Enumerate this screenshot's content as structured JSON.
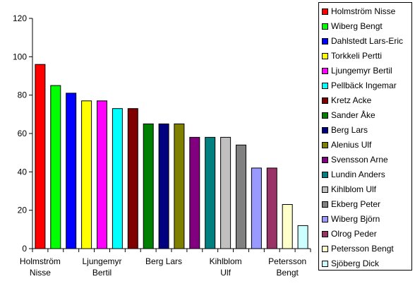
{
  "chart_data": {
    "type": "bar",
    "title": "",
    "xlabel": "",
    "ylabel": "",
    "ylim": [
      0,
      120
    ],
    "yticks": [
      0,
      20,
      40,
      60,
      80,
      100,
      120
    ],
    "grid": false,
    "legend_position": "right",
    "categories": [
      "Holmström Nisse",
      "Wiberg Bengt",
      "Dahlstedt Lars-Eric",
      "Torkkeli Pertti",
      "Ljungemyr Bertil",
      "Pellbäck Ingemar",
      "Kretz Acke",
      "Sander Åke",
      "Berg Lars",
      "Alenius Ulf",
      "Svensson Arne",
      "Lundin Anders",
      "Kihlblom  Ulf",
      "Ekberg Peter",
      "Wiberg Björn",
      "Olrog Peder",
      "Petersson Bengt",
      "Sjöberg Dick"
    ],
    "values": [
      96,
      85,
      81,
      77,
      77,
      73,
      73,
      65,
      65,
      65,
      58,
      58,
      58,
      54,
      42,
      42,
      23,
      12
    ],
    "colors": [
      "#ff0000",
      "#00ff00",
      "#0000ff",
      "#ffff00",
      "#ff00ff",
      "#00ffff",
      "#800000",
      "#008000",
      "#000080",
      "#808000",
      "#800080",
      "#008080",
      "#c0c0c0",
      "#808080",
      "#9999ff",
      "#993366",
      "#ffffcc",
      "#ccffff"
    ],
    "xtick_labels": [
      {
        "index": 0,
        "lines": [
          "Holmström",
          "Nisse"
        ]
      },
      {
        "index": 4,
        "lines": [
          "Ljungemyr",
          "Bertil"
        ]
      },
      {
        "index": 8,
        "lines": [
          "Berg Lars"
        ]
      },
      {
        "index": 12,
        "lines": [
          "Kihlblom",
          "Ulf"
        ]
      },
      {
        "index": 16,
        "lines": [
          "Petersson",
          "Bengt"
        ]
      }
    ]
  }
}
